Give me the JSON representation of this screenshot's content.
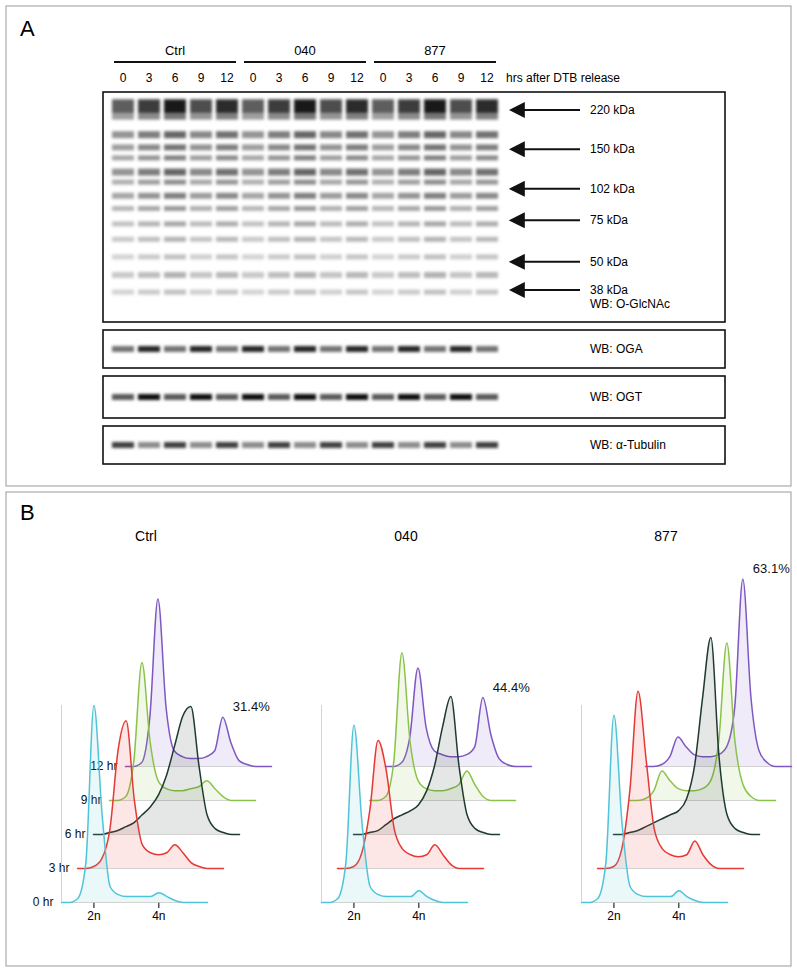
{
  "panel_a": {
    "label": "A",
    "groups": [
      {
        "name": "Ctrl",
        "times": [
          0,
          3,
          6,
          9,
          12
        ]
      },
      {
        "name": "040",
        "times": [
          0,
          3,
          6,
          9,
          12
        ]
      },
      {
        "name": "877",
        "times": [
          0,
          3,
          6,
          9,
          12
        ]
      }
    ],
    "time_label": "hrs after DTB release",
    "markers": [
      {
        "value": 220,
        "label": "220 kDa"
      },
      {
        "value": 150,
        "label": "150 kDa"
      },
      {
        "value": 102,
        "label": "102 kDa"
      },
      {
        "value": 75,
        "label": "75 kDa"
      },
      {
        "value": 50,
        "label": "50 kDa"
      },
      {
        "value": 38,
        "label": "38 kDa"
      }
    ],
    "blots": [
      "WB: O-GlcNAc",
      "WB: OGA",
      "WB: OGT",
      "WB: α-Tubulin"
    ]
  },
  "panel_b": {
    "label": "B"
  },
  "chart_data": [
    {
      "type": "line",
      "title": "Ctrl",
      "x": [
        1,
        1.25,
        1.5,
        1.75,
        2,
        2.25,
        2.5,
        2.75,
        3,
        3.25,
        3.5,
        3.75,
        4,
        4.25,
        4.5,
        4.75,
        5,
        5.25,
        5.5
      ],
      "xlim": [
        1,
        5.5
      ],
      "xticks": [
        {
          "value": 2,
          "label": "2n"
        },
        {
          "value": 4,
          "label": "4n"
        }
      ],
      "ylim": [
        0,
        100
      ],
      "tick_labels": "x",
      "series": [
        {
          "name": "0 hr",
          "color": "#4fc3d9",
          "values": [
            0,
            0,
            2,
            20,
            100,
            45,
            8,
            4,
            3,
            3,
            3,
            3,
            5,
            3,
            1,
            0,
            0,
            0,
            0
          ]
        },
        {
          "name": "3 hr",
          "color": "#e53935",
          "values": [
            0,
            0,
            1,
            5,
            20,
            60,
            75,
            35,
            12,
            8,
            7,
            8,
            12,
            8,
            3,
            1,
            0,
            0,
            0
          ]
        },
        {
          "name": "6 hr",
          "color": "#1f3b2f",
          "values": [
            0,
            0,
            1,
            2,
            4,
            6,
            10,
            14,
            20,
            30,
            45,
            60,
            65,
            35,
            10,
            3,
            1,
            0,
            0
          ]
        },
        {
          "name": "9 hr",
          "color": "#8bc34a",
          "values": [
            0,
            0,
            2,
            20,
            70,
            30,
            10,
            6,
            5,
            5,
            6,
            7,
            10,
            6,
            2,
            0,
            0,
            0,
            0
          ]
        },
        {
          "name": "12 hr",
          "color": "#7e57c2",
          "values": [
            0,
            0,
            2,
            25,
            85,
            30,
            8,
            5,
            4,
            4,
            5,
            8,
            25,
            12,
            3,
            1,
            0,
            0,
            0
          ]
        }
      ],
      "annotations": [
        {
          "text": "31.4%"
        }
      ]
    },
    {
      "type": "line",
      "title": "040",
      "x": [
        1,
        1.25,
        1.5,
        1.75,
        2,
        2.25,
        2.5,
        2.75,
        3,
        3.25,
        3.5,
        3.75,
        4,
        4.25,
        4.5,
        4.75,
        5,
        5.25,
        5.5
      ],
      "xlim": [
        1,
        5.5
      ],
      "xticks": [
        {
          "value": 2,
          "label": "2n"
        },
        {
          "value": 4,
          "label": "4n"
        }
      ],
      "ylim": [
        0,
        100
      ],
      "tick_labels": "x",
      "series": [
        {
          "color": "#4fc3d9",
          "values": [
            0,
            0,
            2,
            20,
            90,
            40,
            8,
            4,
            3,
            3,
            3,
            3,
            6,
            3,
            1,
            0,
            0,
            0,
            0
          ]
        },
        {
          "color": "#e53935",
          "values": [
            0,
            0,
            1,
            8,
            30,
            65,
            50,
            20,
            10,
            7,
            6,
            7,
            12,
            7,
            2,
            0,
            0,
            0,
            0
          ]
        },
        {
          "color": "#1f3b2f",
          "values": [
            0,
            0,
            1,
            2,
            5,
            8,
            10,
            12,
            15,
            22,
            35,
            55,
            70,
            35,
            10,
            3,
            1,
            0,
            0
          ]
        },
        {
          "color": "#8bc34a",
          "values": [
            0,
            0,
            2,
            20,
            75,
            30,
            10,
            6,
            5,
            5,
            6,
            8,
            15,
            8,
            2,
            0,
            0,
            0,
            0
          ]
        },
        {
          "color": "#7e57c2",
          "values": [
            0,
            0,
            2,
            15,
            50,
            20,
            8,
            6,
            5,
            5,
            6,
            10,
            35,
            16,
            4,
            1,
            0,
            0,
            0
          ]
        }
      ],
      "annotations": [
        {
          "text": "44.4%"
        }
      ]
    },
    {
      "type": "line",
      "title": "877",
      "x": [
        1,
        1.25,
        1.5,
        1.75,
        2,
        2.25,
        2.5,
        2.75,
        3,
        3.25,
        3.5,
        3.75,
        4,
        4.25,
        4.5,
        4.75,
        5,
        5.25,
        5.5
      ],
      "xlim": [
        1,
        5.5
      ],
      "xticks": [
        {
          "value": 2,
          "label": "2n"
        },
        {
          "value": 4,
          "label": "4n"
        }
      ],
      "ylim": [
        0,
        100
      ],
      "tick_labels": "x",
      "series": [
        {
          "color": "#4fc3d9",
          "values": [
            0,
            0,
            2,
            20,
            95,
            40,
            8,
            4,
            3,
            3,
            3,
            3,
            6,
            3,
            1,
            0,
            0,
            0,
            0
          ]
        },
        {
          "color": "#e53935",
          "values": [
            0,
            0,
            1,
            10,
            40,
            90,
            55,
            20,
            10,
            7,
            6,
            7,
            14,
            7,
            2,
            0,
            0,
            0,
            0
          ]
        },
        {
          "color": "#1f3b2f",
          "values": [
            0,
            0,
            1,
            2,
            4,
            6,
            8,
            10,
            12,
            18,
            35,
            70,
            100,
            40,
            10,
            3,
            1,
            0,
            0
          ]
        },
        {
          "color": "#8bc34a",
          "values": [
            0,
            0,
            1,
            5,
            15,
            10,
            6,
            5,
            5,
            6,
            10,
            30,
            80,
            30,
            8,
            2,
            0,
            0,
            0
          ]
        },
        {
          "color": "#7e57c2",
          "values": [
            0,
            0,
            1,
            5,
            15,
            10,
            6,
            5,
            5,
            6,
            10,
            30,
            95,
            35,
            8,
            2,
            0,
            0,
            0
          ]
        }
      ],
      "annotations": [
        {
          "text": "63.1%"
        }
      ]
    }
  ]
}
